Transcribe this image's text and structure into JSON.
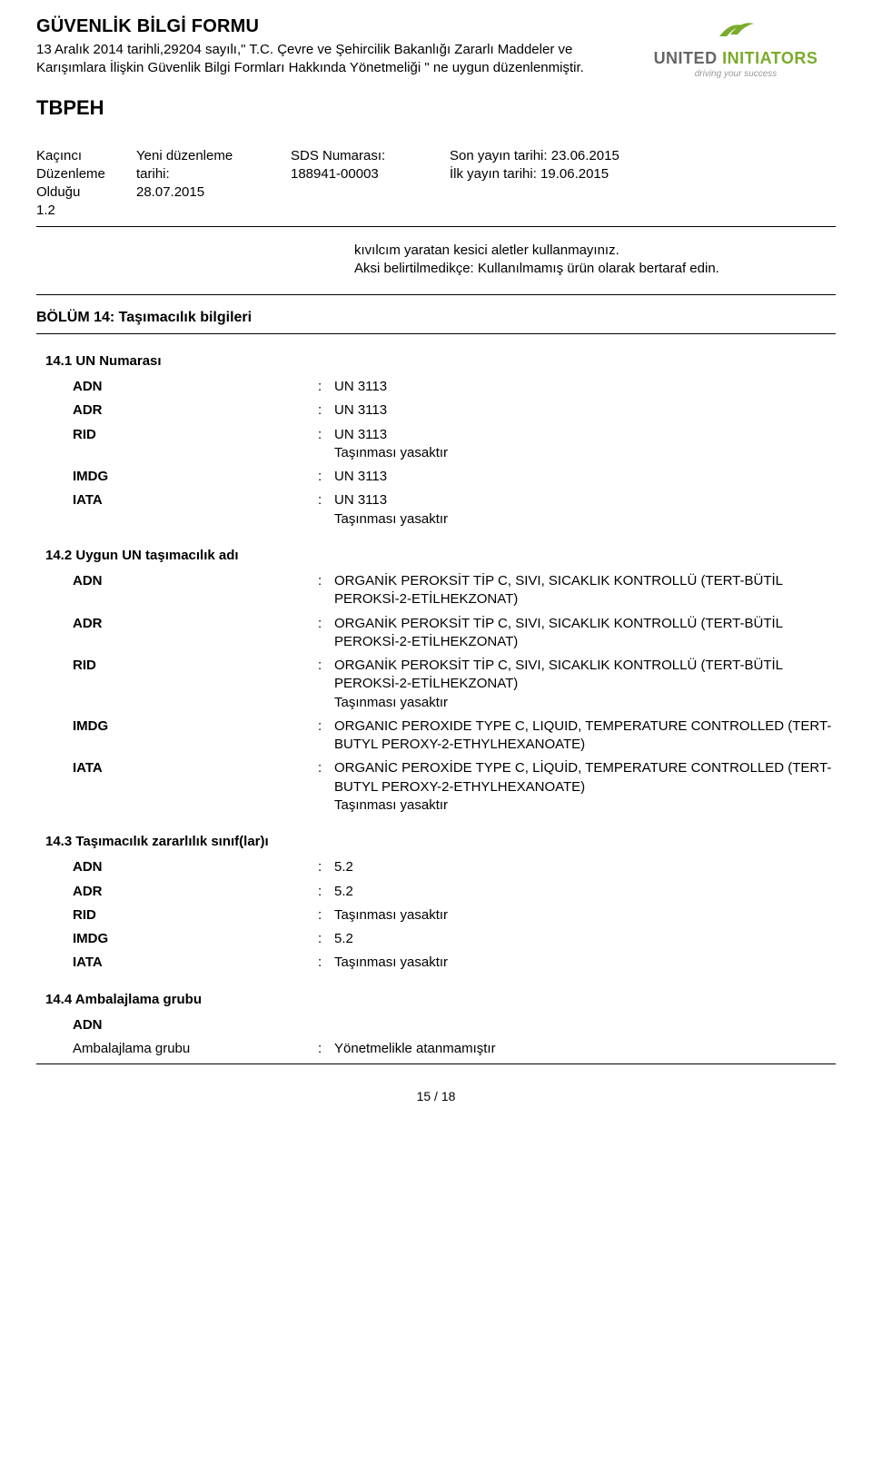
{
  "header": {
    "title": "GÜVENLİK BİLGİ FORMU",
    "subtitle": "13 Aralık 2014 tarihli,29204 sayılı,\" T.C. Çevre ve Şehircilik Bakanlığı Zararlı Maddeler ve Karışımlara İlişkin Güvenlik Bilgi Formları Hakkında Yönetmeliği \" ne uygun düzenlenmiştir.",
    "logo_text_1": "UNITED",
    "logo_text_2": "INITIATORS",
    "logo_tagline": "driving your success",
    "logo_color": "#7aab2a",
    "logo_text_color": "#666666"
  },
  "product": "TBPEH",
  "meta": {
    "col1_l1": "Kaçıncı",
    "col1_l2": "Düzenleme",
    "col1_l3": "Olduğu",
    "col1_l4": "1.2",
    "col2_l1": "Yeni düzenleme",
    "col2_l2": "tarihi:",
    "col2_l3": "28.07.2015",
    "col3_l1": "SDS Numarası:",
    "col3_l2": "188941-00003",
    "col4_l1": "Son yayın tarihi: 23.06.2015",
    "col4_l2": "İlk yayın tarihi: 19.06.2015"
  },
  "note": {
    "line1": "kıvılcım yaratan kesici aletler kullanmayınız.",
    "line2": "Aksi belirtilmedikçe: Kullanılmamış ürün olarak bertaraf edin."
  },
  "section14_title": "BÖLÜM 14: Taşımacılık bilgileri",
  "s14_1": {
    "title": "14.1 UN Numarası",
    "rows": [
      {
        "key": "ADN",
        "bold": true,
        "val": "UN 3113"
      },
      {
        "key": "ADR",
        "bold": true,
        "val": "UN 3113"
      },
      {
        "key": "RID",
        "bold": true,
        "val": "UN 3113\nTaşınması yasaktır"
      },
      {
        "key": "IMDG",
        "bold": true,
        "val": "UN 3113"
      },
      {
        "key": "IATA",
        "bold": true,
        "val": "UN 3113\nTaşınması yasaktır"
      }
    ]
  },
  "s14_2": {
    "title": "14.2 Uygun UN taşımacılık adı",
    "rows": [
      {
        "key": "ADN",
        "bold": true,
        "val": "ORGANİK PEROKSİT TİP C, SIVI, SICAKLIK KONTROLLÜ (TERT-BÜTİL PEROKSİ-2-ETİLHEKZONAT)"
      },
      {
        "key": "ADR",
        "bold": true,
        "val": "ORGANİK PEROKSİT TİP C, SIVI, SICAKLIK KONTROLLÜ (TERT-BÜTİL PEROKSİ-2-ETİLHEKZONAT)"
      },
      {
        "key": "RID",
        "bold": true,
        "val": "ORGANİK PEROKSİT TİP C, SIVI, SICAKLIK KONTROLLÜ (TERT-BÜTİL PEROKSİ-2-ETİLHEKZONAT)\nTaşınması yasaktır"
      },
      {
        "key": "IMDG",
        "bold": true,
        "val": "ORGANIC PEROXIDE TYPE C, LIQUID, TEMPERATURE CONTROLLED (TERT-BUTYL PEROXY-2-ETHYLHEXANOATE)"
      },
      {
        "key": "IATA",
        "bold": true,
        "val": "ORGANİC PEROXİDE TYPE C, LİQUİD, TEMPERATURE CONTROLLED (TERT-BUTYL PEROXY-2-ETHYLHEXANOATE)\nTaşınması yasaktır"
      }
    ]
  },
  "s14_3": {
    "title": "14.3 Taşımacılık zararlılık sınıf(lar)ı",
    "rows": [
      {
        "key": "ADN",
        "bold": true,
        "val": "5.2"
      },
      {
        "key": "ADR",
        "bold": true,
        "val": "5.2"
      },
      {
        "key": "RID",
        "bold": true,
        "val": "Taşınması yasaktır"
      },
      {
        "key": "IMDG",
        "bold": true,
        "val": "5.2"
      },
      {
        "key": "IATA",
        "bold": true,
        "val": "Taşınması yasaktır"
      }
    ]
  },
  "s14_4": {
    "title": "14.4 Ambalajlama grubu",
    "rows": [
      {
        "key": "ADN",
        "bold": true,
        "val": ""
      },
      {
        "key": "Ambalajlama grubu",
        "bold": false,
        "val": "Yönetmelikle atanmamıştır"
      }
    ]
  },
  "footer": "15 / 18"
}
